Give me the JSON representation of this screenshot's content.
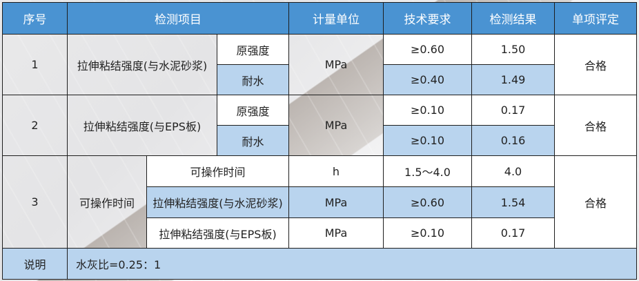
{
  "colors": {
    "header": "#4a93d2",
    "highlight": "#b9d4ee",
    "cell": "#ffffff"
  },
  "header": [
    "序号",
    "检测项目",
    "计量单位",
    "技术要求",
    "检测结果",
    "单项评定"
  ],
  "rows": [
    {
      "no": "1",
      "item": "拉伸粘结强度(与水泥砂浆)",
      "unit": "MPa",
      "verdict": "合格",
      "sub": [
        {
          "label": "原强度",
          "req": "≥0.60",
          "result": "1.50"
        },
        {
          "label": "耐水",
          "req": "≥0.40",
          "result": "1.49"
        }
      ]
    },
    {
      "no": "2",
      "item": "拉伸粘结强度(与EPS板)",
      "unit": "MPa",
      "verdict": "合格",
      "sub": [
        {
          "label": "原强度",
          "req": "≥0.10",
          "result": "0.17"
        },
        {
          "label": "耐水",
          "req": "≥0.10",
          "result": "0.16"
        }
      ]
    },
    {
      "no": "3",
      "item": "可操作时间",
      "verdict": "合格",
      "sub": [
        {
          "label": "可操作时间",
          "unit": "h",
          "req": "1.5～4.0",
          "result": "4.0"
        },
        {
          "label": "拉伸粘结强度(与水泥砂浆)",
          "unit": "MPa",
          "req": "≥0.60",
          "result": "1.54"
        },
        {
          "label": "拉伸粘结强度(与EPS板)",
          "unit": "MPa",
          "req": "≥0.10",
          "result": "0.17"
        }
      ]
    }
  ],
  "note": {
    "label": "说明",
    "text": "水灰比=0.25：1"
  }
}
